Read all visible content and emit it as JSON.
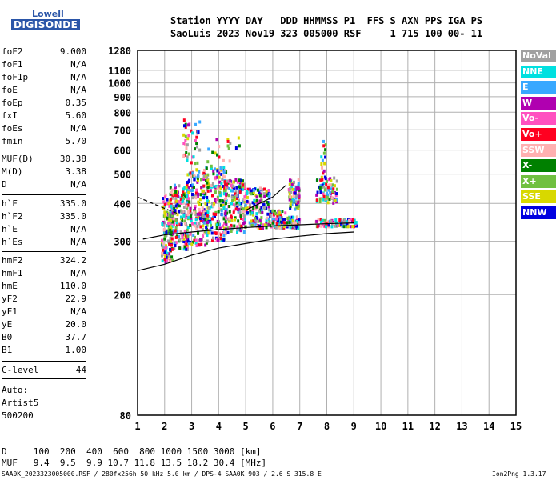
{
  "logo": {
    "line1": "Lowell",
    "line2": "DIGISONDE"
  },
  "header": {
    "line1": "Station YYYY DAY   DDD HHMMSS P1  FFS S AXN PPS IGA PS",
    "line2": "SaoLuis 2023 Nov19 323 005000 RSF     1 715 100 00- 11"
  },
  "params_group1": [
    {
      "name": "foF2",
      "value": "9.000"
    },
    {
      "name": "foF1",
      "value": "N/A"
    },
    {
      "name": "foF1p",
      "value": "N/A"
    },
    {
      "name": "foE",
      "value": "N/A"
    },
    {
      "name": "foEp",
      "value": "0.35"
    },
    {
      "name": "fxI",
      "value": "5.60"
    },
    {
      "name": "foEs",
      "value": "N/A"
    },
    {
      "name": "fmin",
      "value": "5.70"
    }
  ],
  "params_group2": [
    {
      "name": "MUF(D)",
      "value": "30.38"
    },
    {
      "name": "M(D)",
      "value": "3.38"
    },
    {
      "name": "D",
      "value": "N/A"
    }
  ],
  "params_group3": [
    {
      "name": "h`F",
      "value": "335.0"
    },
    {
      "name": "h`F2",
      "value": "335.0"
    },
    {
      "name": "h`E",
      "value": "N/A"
    },
    {
      "name": "h`Es",
      "value": "N/A"
    }
  ],
  "params_group4": [
    {
      "name": "hmF2",
      "value": "324.2"
    },
    {
      "name": "hmF1",
      "value": "N/A"
    },
    {
      "name": "hmE",
      "value": "110.0"
    },
    {
      "name": "yF2",
      "value": "22.9"
    },
    {
      "name": "yF1",
      "value": "N/A"
    },
    {
      "name": "yE",
      "value": "20.0"
    },
    {
      "name": "B0",
      "value": "37.7"
    },
    {
      "name": "B1",
      "value": "1.00"
    }
  ],
  "params_group5": [
    {
      "name": "C-level",
      "value": "44"
    }
  ],
  "auto": {
    "line1": "Auto:",
    "line2": "Artist5",
    "line3": "500200"
  },
  "legend": [
    {
      "label": "NoVal",
      "color": "#a0a0a0"
    },
    {
      "label": "NNE",
      "color": "#00e0e0"
    },
    {
      "label": "E",
      "color": "#38a8ff"
    },
    {
      "label": "W",
      "color": "#b000b0"
    },
    {
      "label": "Vo-",
      "color": "#ff50c0"
    },
    {
      "label": "Vo+",
      "color": "#ff0020"
    },
    {
      "label": "SSW",
      "color": "#ffb0b0"
    },
    {
      "label": "X-",
      "color": "#008000"
    },
    {
      "label": "X+",
      "color": "#70c040"
    },
    {
      "label": "SSE",
      "color": "#d8d800"
    },
    {
      "label": "NNW",
      "color": "#0000e0"
    }
  ],
  "bottom": {
    "row1": "D     100  200  400  600  800 1000 1500 3000 [km]",
    "row2": "MUF   9.4  9.5  9.9 10.7 11.8 13.5 18.2 30.4 [MHz]"
  },
  "footer": {
    "left": "SAA0K_2023323005000.RSF / 280fx256h 50 kHz 5.0 km / DPS-4 SAA0K 903 / 2.6 S 315.8 E",
    "right": "Ion2Png 1.3.17"
  },
  "chart_data": {
    "type": "scatter",
    "title": "",
    "xlabel": "",
    "ylabel": "",
    "xlim": [
      1,
      15
    ],
    "ylim": [
      80,
      1280
    ],
    "x_ticks": [
      1,
      2,
      3,
      4,
      5,
      6,
      7,
      8,
      9,
      10,
      11,
      12,
      13,
      14,
      15
    ],
    "y_ticks": [
      80,
      200,
      300,
      400,
      500,
      600,
      700,
      800,
      900,
      1000,
      1100,
      1280
    ],
    "y_scale": "log",
    "grid": true,
    "series": [
      {
        "description_key": "echo_clusters",
        "clusters": [
          {
            "x0": 1.9,
            "x1": 2.3,
            "y0": 255,
            "y1": 430,
            "n": 140
          },
          {
            "x0": 2.2,
            "x1": 2.9,
            "y0": 280,
            "y1": 460,
            "n": 170
          },
          {
            "x0": 2.8,
            "x1": 3.6,
            "y0": 290,
            "y1": 520,
            "n": 190
          },
          {
            "x0": 3.5,
            "x1": 4.3,
            "y0": 300,
            "y1": 530,
            "n": 180
          },
          {
            "x0": 4.2,
            "x1": 5.0,
            "y0": 320,
            "y1": 480,
            "n": 160
          },
          {
            "x0": 4.9,
            "x1": 5.9,
            "y0": 330,
            "y1": 450,
            "n": 150
          },
          {
            "x0": 5.9,
            "x1": 6.5,
            "y0": 330,
            "y1": 380,
            "n": 80
          },
          {
            "x0": 6.6,
            "x1": 7.0,
            "y0": 380,
            "y1": 480,
            "n": 70
          },
          {
            "x0": 6.5,
            "x1": 7.0,
            "y0": 330,
            "y1": 360,
            "n": 60
          },
          {
            "x0": 7.6,
            "x1": 8.4,
            "y0": 400,
            "y1": 490,
            "n": 80
          },
          {
            "x0": 7.6,
            "x1": 9.1,
            "y0": 335,
            "y1": 355,
            "n": 90
          },
          {
            "x0": 2.7,
            "x1": 3.3,
            "y0": 530,
            "y1": 760,
            "n": 40
          },
          {
            "x0": 3.5,
            "x1": 4.8,
            "y0": 520,
            "y1": 660,
            "n": 22
          },
          {
            "x0": 7.8,
            "x1": 8.0,
            "y0": 500,
            "y1": 650,
            "n": 14
          }
        ],
        "colors": [
          "#0000e0",
          "#ff0020",
          "#ffb0b0",
          "#d8d800",
          "#70c040",
          "#008000",
          "#b000b0",
          "#ff50c0",
          "#38a8ff",
          "#00e0e0",
          "#a0a0a0"
        ]
      }
    ],
    "lines": [
      {
        "name": "lower_trace",
        "x": [
          1.0,
          2.0,
          3.0,
          4.0,
          5.0,
          6.0,
          7.0,
          8.0,
          9.0
        ],
        "y": [
          240,
          252,
          270,
          285,
          295,
          305,
          312,
          318,
          322
        ]
      },
      {
        "name": "upper_trace",
        "x": [
          1.2,
          2.0,
          3.0,
          4.0,
          5.0,
          6.0,
          7.0,
          8.0,
          9.0
        ],
        "y": [
          305,
          315,
          322,
          328,
          333,
          337,
          340,
          343,
          345
        ]
      },
      {
        "name": "dashed_trace",
        "x": [
          1.0,
          2.0,
          2.5
        ],
        "y": [
          420,
          385,
          370
        ],
        "dashed": true
      },
      {
        "name": "mid_trace",
        "x": [
          5.0,
          6.0,
          6.5
        ],
        "y": [
          380,
          420,
          460
        ]
      }
    ]
  }
}
